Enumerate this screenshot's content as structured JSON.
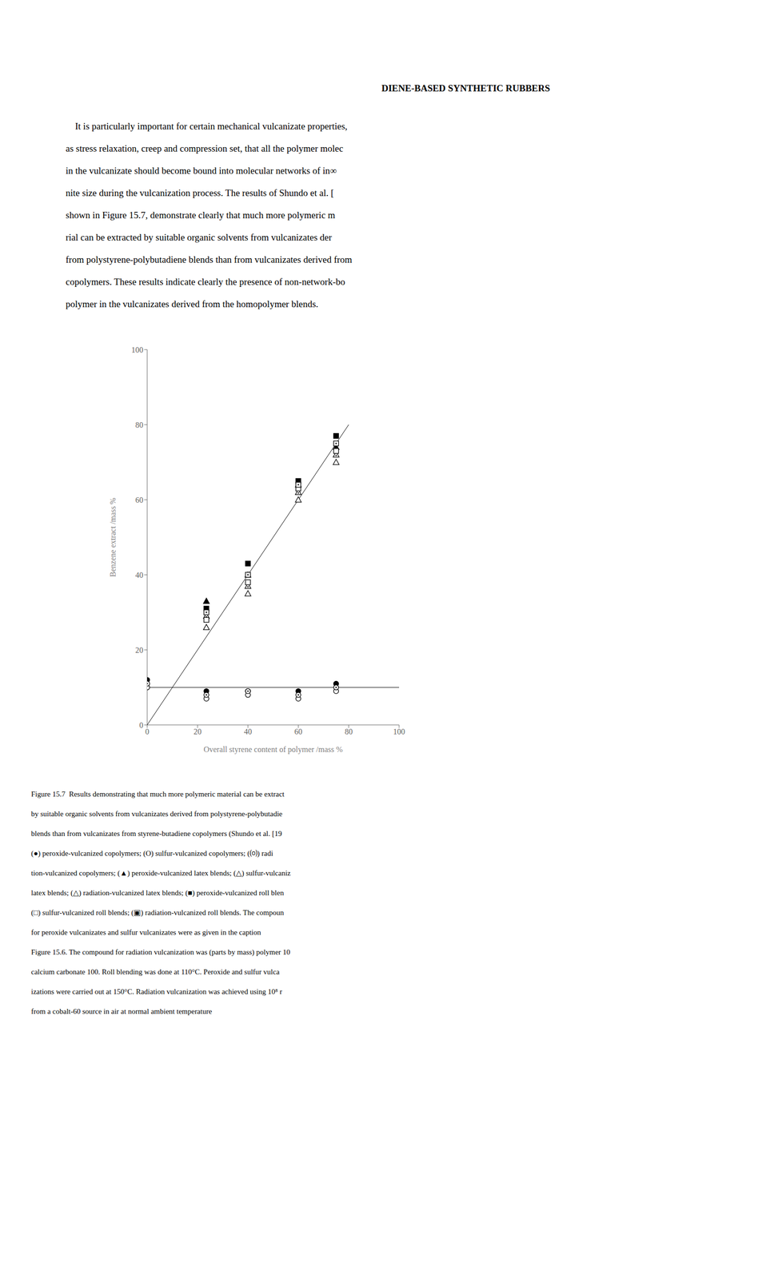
{
  "chart_data": {
    "type": "scatter",
    "title": "DIENE-BASED SYNTHETIC RUBBERS",
    "subtitle": [
      "    It is particularly important for certain mechanical vulcanizate properties,",
      "as stress relaxation, creep and compression set, that all the polymer molec",
      "in the vulcanizate should become bound into molecular networks of in∞",
      "nite size during the vulcanization process. The results of Shundo et al. [",
      "shown in Figure 15.7, demonstrate clearly that much more polymeric m",
      "rial can be extracted by suitable organic solvents from vulcanizates der",
      "from polystyrene-polybutadiene blends than from vulcanizates derived from",
      "copolymers. These results indicate clearly the presence of non-network-bo",
      "polymer in the vulcanizates derived from the homopolymer blends."
    ],
    "caption": [
      "Figure 15.7  Results demonstrating that much more polymeric material can be extract",
      "by suitable organic solvents from vulcanizates derived from polystyrene-polybutadie",
      "blends than from vulcanizates from styrene-butadiene copolymers (Shundo et al. [19",
      "(●) peroxide-vulcanized copolymers; (O) sulfur-vulcanized copolymers; (⒪) radi",
      "tion-vulcanized copolymers; (▲) peroxide-vulcanized latex blends; (△) sulfur-vulcaniz",
      "latex blends; (△) radiation-vulcanized latex blends; (■) peroxide-vulcanized roll blen",
      "(□) sulfur-vulcanized roll blends; (▣) radiation-vulcanized roll blends. The compoun",
      "for peroxide vulcanizates and sulfur vulcanizates were as given in the caption",
      "Figure 15.6. The compound for radiation vulcanization was (parts by mass) polymer 10",
      "calcium carbonate 100. Roll blending was done at 110°C. Peroxide and sulfur vulca",
      "izations were carried out at 150°C. Radiation vulcanization was achieved using 10⁸ r",
      "from a cobalt-60 source in air at normal ambient temperature"
    ],
    "xlabel": "Overall styrene content of polymer /mass %",
    "ylabel": "Benzene extract /mass %",
    "xlim": [
      0,
      100
    ],
    "ylim": [
      0,
      100
    ],
    "xticks": [
      0,
      20,
      40,
      60,
      80,
      100
    ],
    "yticks": [
      0,
      20,
      40,
      60,
      80,
      100
    ],
    "grid": false,
    "series": [
      {
        "type": "line",
        "color": "#000000",
        "x": [
          0,
          100
        ],
        "values": [
          10,
          10
        ]
      },
      {
        "type": "line",
        "color": "#000000",
        "x": [
          0,
          80
        ],
        "values": [
          0,
          80
        ]
      },
      {
        "type": "scatter",
        "color": "#000000",
        "marker": "circle",
        "x": [
          0,
          23.5,
          40,
          60,
          75
        ],
        "values": [
          12,
          9,
          9,
          9,
          11
        ]
      },
      {
        "type": "scatter",
        "color": "#000000",
        "marker": "circle-open",
        "x": [
          0,
          23.5,
          40,
          60,
          75
        ],
        "values": [
          10,
          7,
          8,
          7,
          9
        ]
      },
      {
        "type": "scatter",
        "color": "#000000",
        "marker": "circle-dot",
        "x": [
          0,
          23.5,
          40,
          60,
          75
        ],
        "values": [
          11,
          8,
          9,
          8,
          10
        ]
      },
      {
        "type": "scatter",
        "color": "#000000",
        "marker": "triangle",
        "x": [
          23.5,
          40,
          60,
          75
        ],
        "values": [
          33,
          40,
          64,
          74
        ]
      },
      {
        "type": "scatter",
        "color": "#000000",
        "marker": "triangle-open",
        "x": [
          23.5,
          40,
          60,
          75
        ],
        "values": [
          26,
          35,
          60,
          70
        ]
      },
      {
        "type": "scatter",
        "color": "#000000",
        "marker": "triangle-dot",
        "x": [
          23.5,
          40,
          60,
          75
        ],
        "values": [
          29,
          37,
          62,
          72
        ]
      },
      {
        "type": "scatter",
        "color": "#000000",
        "marker": "square",
        "x": [
          23.5,
          40,
          60,
          75
        ],
        "values": [
          31,
          43,
          65,
          77
        ]
      },
      {
        "type": "scatter",
        "color": "#000000",
        "marker": "square-open",
        "x": [
          23.5,
          40,
          60,
          75
        ],
        "values": [
          28,
          38,
          63,
          73
        ]
      },
      {
        "type": "scatter",
        "color": "#000000",
        "marker": "square-dot",
        "x": [
          23.5,
          40,
          60,
          75
        ],
        "values": [
          30,
          40,
          64,
          75
        ]
      }
    ]
  }
}
